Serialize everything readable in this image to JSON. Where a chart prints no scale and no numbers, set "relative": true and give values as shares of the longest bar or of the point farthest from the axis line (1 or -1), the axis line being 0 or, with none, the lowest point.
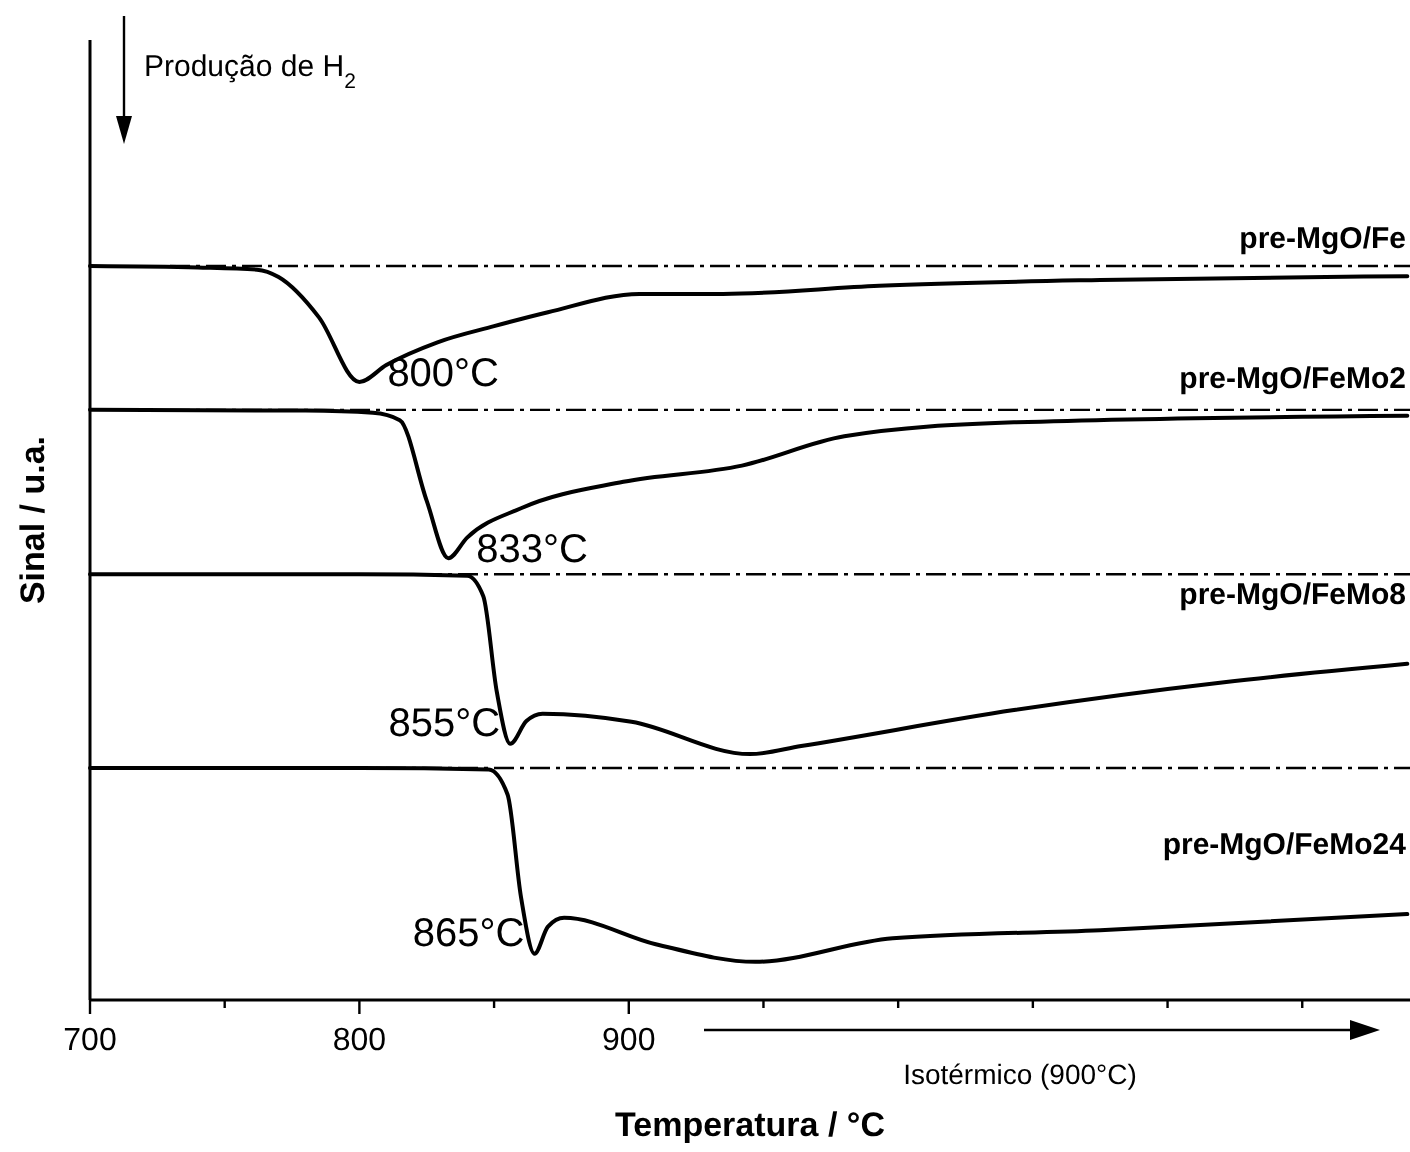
{
  "chart_data": {
    "type": "line",
    "relative": true,
    "xlabel": "Temperatura / °C",
    "ylabel": "Sinal / u.a.",
    "tick_labels": "x",
    "grid": false,
    "line_style": "solid",
    "xlim": [
      700,
      1190
    ],
    "xticks": [
      700,
      {
        "value": 750,
        "label": null
      },
      800,
      {
        "value": 850,
        "label": null
      },
      900,
      {
        "value": 950,
        "label": null
      },
      {
        "value": 1000,
        "label": null
      },
      {
        "value": 1050,
        "label": null
      },
      {
        "value": 1100,
        "label": null
      },
      {
        "value": 1150,
        "label": null
      }
    ],
    "series": [
      {
        "name": "pre-MgO/Fe",
        "color": "#000000",
        "x": [
          700,
          740,
          762,
          770,
          785,
          800,
          810,
          829,
          850,
          870,
          904,
          935,
          993,
          1075,
          1189
        ],
        "values": [
          1.0,
          0.998,
          0.995,
          0.985,
          0.93,
          0.842,
          0.865,
          0.896,
          0.918,
          0.937,
          0.962,
          0.962,
          0.973,
          0.981,
          0.986
        ]
      },
      {
        "name": "pre-MgO/FeMo2",
        "color": "#000000",
        "x": [
          700,
          780,
          805,
          815,
          825,
          833,
          840,
          860,
          898,
          942,
          980,
          1043,
          1189
        ],
        "values": [
          0.804,
          0.803,
          0.8,
          0.79,
          0.68,
          0.602,
          0.63,
          0.67,
          0.706,
          0.728,
          0.768,
          0.787,
          0.796
        ]
      },
      {
        "name": "pre-MgO/FeMo8",
        "color": "#000000",
        "x": [
          700,
          800,
          840,
          846,
          851,
          856,
          862,
          868,
          901,
          945,
          964,
          1043,
          1121,
          1189
        ],
        "values": [
          0.58,
          0.58,
          0.578,
          0.55,
          0.42,
          0.349,
          0.38,
          0.39,
          0.379,
          0.335,
          0.346,
          0.395,
          0.433,
          0.458
        ]
      },
      {
        "name": "pre-MgO/FeMo24",
        "color": "#000000",
        "x": [
          700,
          800,
          848,
          855,
          860,
          865,
          870,
          876,
          910,
          947,
          998,
          1075,
          1189
        ],
        "values": [
          0.316,
          0.316,
          0.314,
          0.28,
          0.14,
          0.063,
          0.1,
          0.112,
          0.076,
          0.052,
          0.084,
          0.095,
          0.117
        ]
      }
    ],
    "ref_lines": [
      {
        "axis": "y",
        "value": 1.0,
        "line_style": "dashed"
      },
      {
        "axis": "y",
        "value": 0.804,
        "line_style": "dashed"
      },
      {
        "axis": "y",
        "value": 0.58,
        "line_style": "dashed"
      },
      {
        "axis": "y",
        "value": 0.316,
        "line_style": "dashed"
      }
    ],
    "annotations": [
      {
        "text": "800°C",
        "x": 800,
        "y": 0.842
      },
      {
        "text": "833°C",
        "x": 833,
        "y": 0.602
      },
      {
        "text": "855°C",
        "x": 856,
        "y": 0.349
      },
      {
        "text": "865°C",
        "x": 865,
        "y": 0.063
      },
      "Produção de H$_{2}$",
      "Isotérmico (900°C)"
    ]
  }
}
